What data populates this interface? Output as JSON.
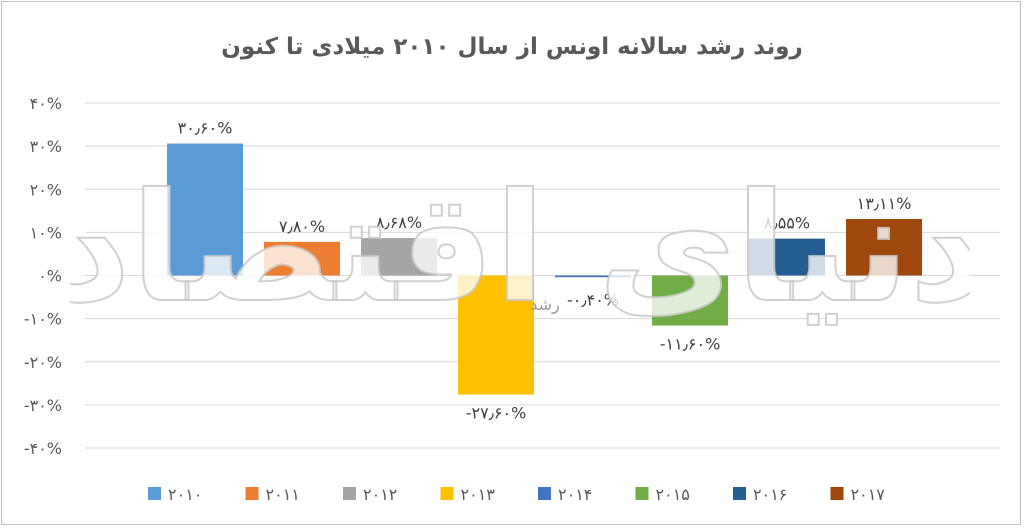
{
  "chart_data": {
    "type": "bar",
    "title": "روند رشد سالانه اونس از سال ۲۰۱۰ میلادی تا کنون",
    "ylim": [
      -40,
      40
    ],
    "yticks": [
      -40,
      -30,
      -20,
      -10,
      0,
      10,
      20,
      30,
      40
    ],
    "ytick_labels": [
      "-۴۰%",
      "-۳۰%",
      "-۲۰%",
      "-۱۰%",
      "۰%",
      "۱۰%",
      "۲۰%",
      "۳۰%",
      "۴۰%"
    ],
    "grid": true,
    "legend_position": "bottom",
    "series": [
      {
        "name": "۲۰۱۰",
        "value": 30.6,
        "label": "۳۰٫۶۰%",
        "color": "#5b9bd5"
      },
      {
        "name": "۲۰۱۱",
        "value": 7.8,
        "label": "۷٫۸۰%",
        "color": "#ed7d31"
      },
      {
        "name": "۲۰۱۲",
        "value": 8.68,
        "label": "۸٫۶۸%",
        "color": "#a5a5a5"
      },
      {
        "name": "۲۰۱۳",
        "value": -27.6,
        "label": "-۲۷٫۶۰%",
        "color": "#ffc000"
      },
      {
        "name": "۲۰۱۴",
        "value": -0.4,
        "label": "-۰٫۴۰%",
        "color": "#4472c4"
      },
      {
        "name": "۲۰۱۵",
        "value": -11.6,
        "label": "-۱۱٫۶۰%",
        "color": "#70ad47"
      },
      {
        "name": "۲۰۱۶",
        "value": 8.55,
        "label": "۸٫۵۵%",
        "color": "#255e91"
      },
      {
        "name": "۲۰۱۷",
        "value": 13.11,
        "label": "۱۳٫۱۱%",
        "color": "#9e480e"
      }
    ]
  },
  "watermark": {
    "text": "دنیای اقتصاد",
    "small_text": "رشد"
  }
}
